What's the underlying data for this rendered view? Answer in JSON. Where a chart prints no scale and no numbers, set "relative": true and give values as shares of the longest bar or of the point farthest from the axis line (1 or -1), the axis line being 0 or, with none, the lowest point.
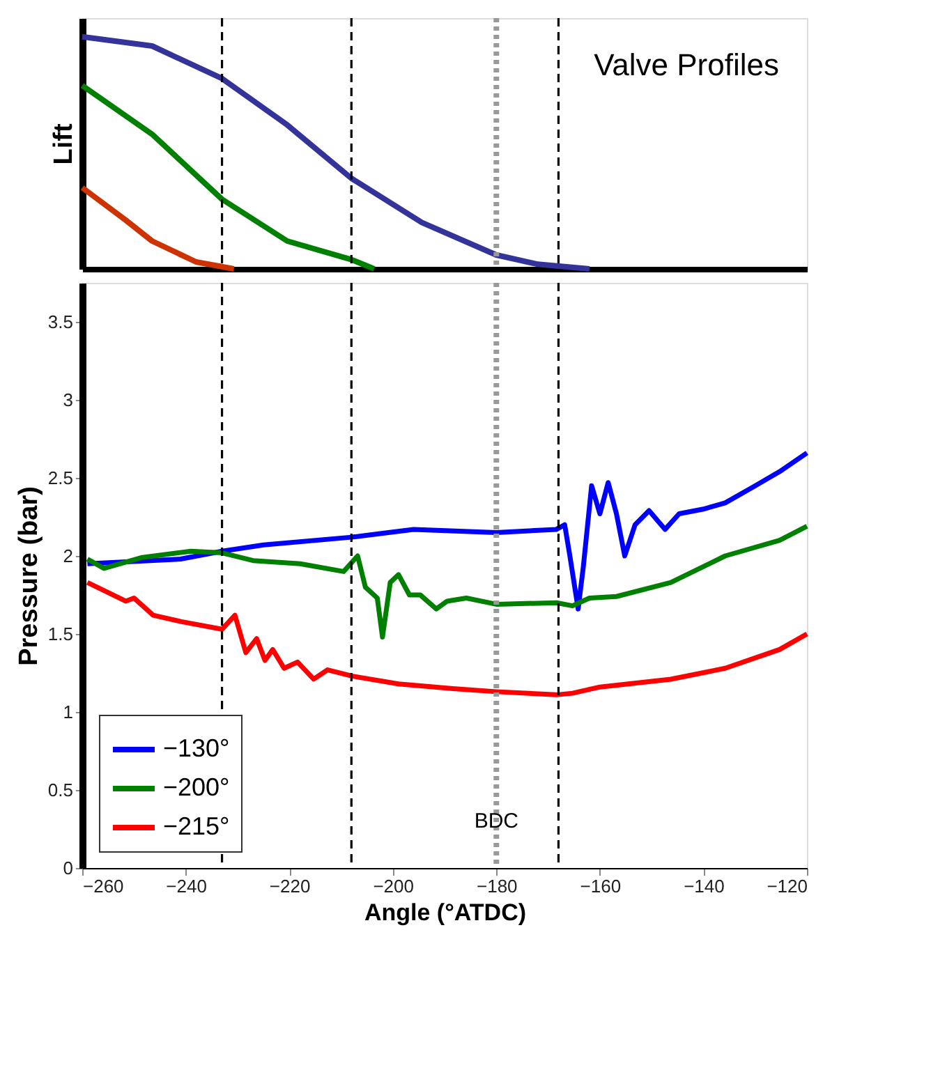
{
  "chart_data": [
    {
      "type": "line",
      "relative": true,
      "ylabel": "Lift",
      "annotations": [
        "Valve Profiles"
      ],
      "xlim": [
        -260,
        -120
      ],
      "tick_labels": false,
      "grid": false,
      "series": [
        {
          "color": "#333399",
          "x": [
            -260,
            -246.5,
            -233,
            -220.4,
            -208,
            -194.4,
            -180,
            -172,
            -162
          ],
          "values": [
            1.0,
            0.96,
            0.82,
            0.62,
            0.39,
            0.2,
            0.06,
            0.02,
            0.0
          ]
        },
        {
          "color": "#008000",
          "x": [
            -260,
            -246.5,
            -233,
            -220.4,
            -208,
            -203.6
          ],
          "values": [
            0.79,
            0.58,
            0.3,
            0.12,
            0.04,
            0.0
          ]
        },
        {
          "color": "#cc3300",
          "x": [
            -260,
            -251.6,
            -246.5,
            -238,
            -230.7
          ],
          "values": [
            0.35,
            0.21,
            0.12,
            0.03,
            0.0
          ]
        }
      ],
      "ref_lines": [
        {
          "axis": "x",
          "value": -233,
          "color": "#000000",
          "line_style": "dashed"
        },
        {
          "axis": "x",
          "value": -208,
          "color": "#000000",
          "line_style": "dashed"
        },
        {
          "axis": "x",
          "value": -180,
          "color": "#999999",
          "line_style": "dotted"
        },
        {
          "axis": "x",
          "value": -168,
          "color": "#000000",
          "line_style": "dashed"
        }
      ]
    },
    {
      "type": "line",
      "xlabel": "Angle (°ATDC)",
      "ylabel": "Pressure (bar)",
      "xlim": [
        -260,
        -120
      ],
      "xticks": [
        -260,
        -240,
        -220,
        -200,
        -180,
        -160,
        -140,
        -120
      ],
      "ylim": [
        0,
        3.75
      ],
      "yticks": [
        0,
        0.5,
        1,
        1.5,
        2,
        2.5,
        3,
        3.5
      ],
      "grid": false,
      "legend": "bottom left",
      "series": [
        {
          "name": "−130°",
          "color": "#0000ff",
          "x": [
            -259,
            -241,
            -233,
            -225,
            -208,
            -196,
            -180,
            -168.4,
            -166.8,
            -165.8,
            -164.2,
            -163.2,
            -161.6,
            -160,
            -158.4,
            -156.8,
            -155.2,
            -153.2,
            -150.5,
            -147.4,
            -144.7,
            -140,
            -135.8,
            -130.5,
            -125.3,
            -120
          ],
          "values": [
            1.95,
            1.98,
            2.03,
            2.07,
            2.12,
            2.17,
            2.15,
            2.17,
            2.2,
            2.0,
            1.66,
            1.93,
            2.45,
            2.27,
            2.47,
            2.27,
            2.0,
            2.2,
            2.29,
            2.17,
            2.27,
            2.3,
            2.34,
            2.44,
            2.54,
            2.66
          ]
        },
        {
          "name": "−200°",
          "color": "#008000",
          "x": [
            -259,
            -255.8,
            -248.4,
            -239,
            -233,
            -227,
            -217.9,
            -209.5,
            -206.8,
            -205.3,
            -203,
            -202,
            -200.5,
            -198.9,
            -196.8,
            -194.7,
            -191.6,
            -189.5,
            -185.8,
            -180,
            -168.4,
            -165.3,
            -162,
            -156.8,
            -146.3,
            -135.8,
            -125.3,
            -120
          ],
          "values": [
            1.98,
            1.92,
            1.99,
            2.03,
            2.02,
            1.97,
            1.95,
            1.9,
            2.0,
            1.8,
            1.73,
            1.48,
            1.83,
            1.88,
            1.75,
            1.75,
            1.66,
            1.71,
            1.73,
            1.69,
            1.7,
            1.68,
            1.73,
            1.74,
            1.83,
            2.0,
            2.1,
            2.19
          ]
        },
        {
          "name": "−215°",
          "color": "#ff0000",
          "x": [
            -259,
            -251.6,
            -250,
            -246.3,
            -241,
            -233,
            -230.5,
            -228.4,
            -226.3,
            -224.7,
            -223.2,
            -221,
            -218.4,
            -215.3,
            -212.6,
            -207.9,
            -198.9,
            -188.4,
            -180,
            -168.4,
            -165.3,
            -160,
            -146.3,
            -135.8,
            -125.3,
            -120
          ],
          "values": [
            1.83,
            1.71,
            1.73,
            1.62,
            1.58,
            1.53,
            1.62,
            1.38,
            1.47,
            1.33,
            1.4,
            1.28,
            1.32,
            1.21,
            1.27,
            1.23,
            1.18,
            1.15,
            1.13,
            1.11,
            1.12,
            1.16,
            1.21,
            1.28,
            1.4,
            1.5
          ]
        }
      ],
      "ref_lines": [
        {
          "axis": "x",
          "value": -233,
          "color": "#000000",
          "line_style": "dashed"
        },
        {
          "axis": "x",
          "value": -208,
          "color": "#000000",
          "line_style": "dashed"
        },
        {
          "axis": "x",
          "value": -180,
          "label": "BDC",
          "color": "#999999",
          "line_style": "dotted"
        },
        {
          "axis": "x",
          "value": -168,
          "color": "#000000",
          "line_style": "dashed"
        }
      ]
    }
  ]
}
